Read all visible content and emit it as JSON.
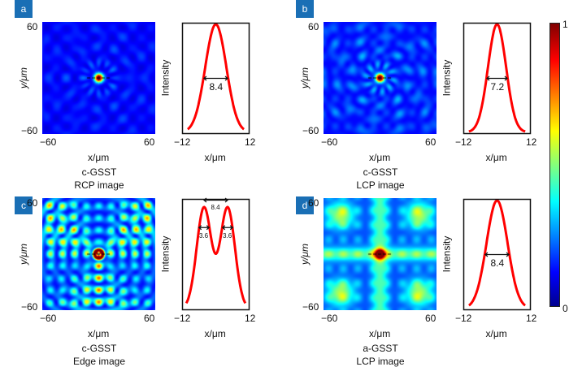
{
  "chart_data": [
    {
      "panel": "a",
      "type": "heatmap+line",
      "heatmap": {
        "pattern": "focal-spot-weak-sidelobes",
        "xticks": [
          "−60",
          "60"
        ],
        "yticks": [
          "60",
          "−60"
        ],
        "xlabel": "x/μm",
        "ylabel": "y/μm",
        "xlim": [
          -60,
          60
        ],
        "ylim": [
          -60,
          60
        ]
      },
      "profile": {
        "type": "line",
        "shape": "single-peak",
        "fwhm": 8.4,
        "annotation": "8.4",
        "xticks": [
          "−12",
          "12"
        ],
        "xlabel": "x/μm",
        "ylabel": "Intensity",
        "xlim": [
          -12,
          12
        ],
        "color": "#ff0000"
      },
      "caption": [
        "c-GSST",
        "RCP image"
      ]
    },
    {
      "panel": "b",
      "type": "heatmap+line",
      "heatmap": {
        "pattern": "focal-spot-speckle",
        "xticks": [
          "−60",
          "60"
        ],
        "yticks": [
          "60",
          "−60"
        ],
        "xlabel": "x/μm",
        "ylabel": "y/μm",
        "xlim": [
          -60,
          60
        ],
        "ylim": [
          -60,
          60
        ]
      },
      "profile": {
        "type": "line",
        "shape": "single-peak",
        "fwhm": 7.2,
        "annotation": "7.2",
        "xticks": [
          "−12",
          "12"
        ],
        "xlabel": "x/μm",
        "ylabel": "Intensity",
        "xlim": [
          -12,
          12
        ],
        "color": "#ff0000"
      },
      "caption": [
        "c-GSST",
        "LCP image"
      ]
    },
    {
      "panel": "c",
      "type": "heatmap+line",
      "heatmap": {
        "pattern": "edge-ring-lattice",
        "xticks": [
          "−60",
          "60"
        ],
        "yticks": [
          "60",
          "−60"
        ],
        "xlabel": "x/μm",
        "ylabel": "y/μm",
        "xlim": [
          -60,
          60
        ],
        "ylim": [
          -60,
          60
        ]
      },
      "profile": {
        "type": "line",
        "shape": "double-peak",
        "peak_separation": 8.4,
        "peak_fwhm": 3.6,
        "annotations": [
          "8.4",
          "3.6",
          "3.6"
        ],
        "xticks": [
          "−12",
          "12"
        ],
        "xlabel": "x/μm",
        "ylabel": "Intensity",
        "xlim": [
          -12,
          12
        ],
        "color": "#ff0000"
      },
      "caption": [
        "c-GSST",
        "Edge image"
      ]
    },
    {
      "panel": "d",
      "type": "heatmap+line",
      "heatmap": {
        "pattern": "focal-spot-cross-background",
        "xticks": [
          "−60",
          "60"
        ],
        "yticks": [
          "60",
          "−60"
        ],
        "xlabel": "x/μm",
        "ylabel": "y/μm",
        "xlim": [
          -60,
          60
        ],
        "ylim": [
          -60,
          60
        ]
      },
      "profile": {
        "type": "line",
        "shape": "single-peak",
        "fwhm": 8.4,
        "annotation": "8.4",
        "xticks": [
          "−12",
          "12"
        ],
        "xlabel": "x/μm",
        "ylabel": "Intensity",
        "xlim": [
          -12,
          12
        ],
        "color": "#ff0000"
      },
      "caption": [
        "a-GSST",
        "LCP image"
      ]
    }
  ],
  "colorbar": {
    "colormap": "jet",
    "ticks": [
      "1",
      "0"
    ],
    "range": [
      0,
      1
    ]
  },
  "colors": {
    "panel_label_bg": "#1a6fb5",
    "profile_line": "#ff0000"
  }
}
